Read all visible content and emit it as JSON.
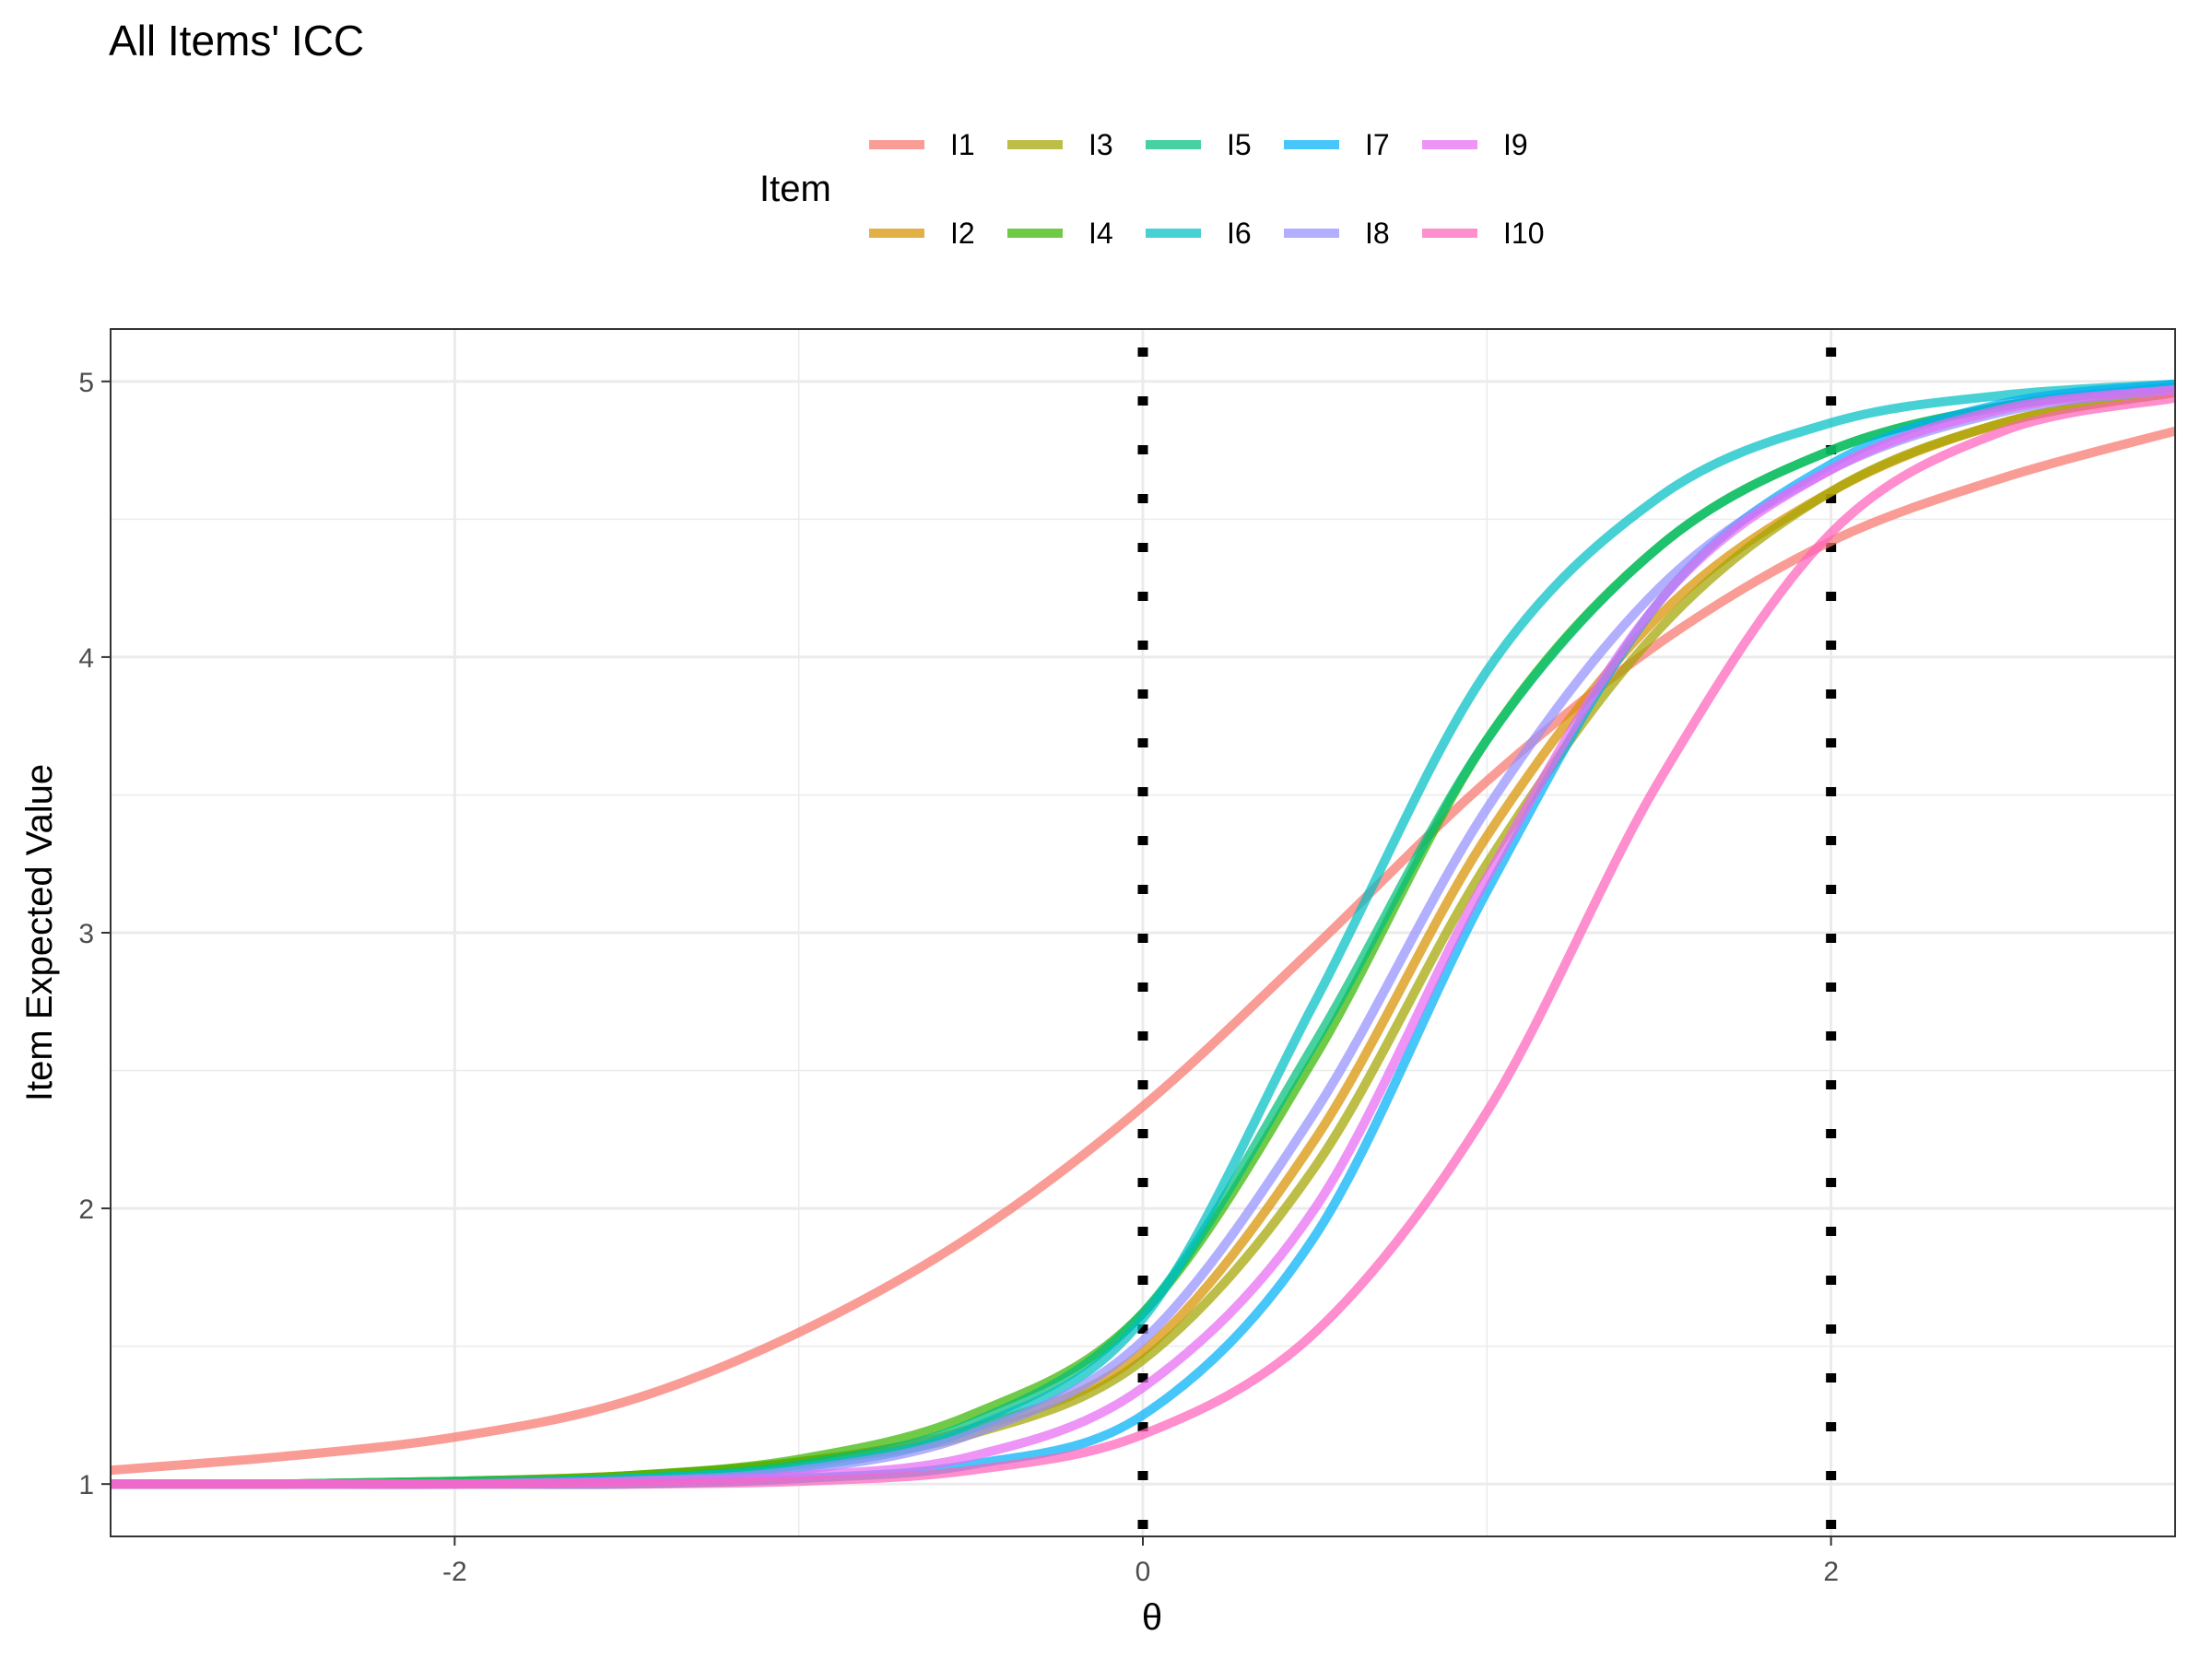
{
  "chart_data": {
    "type": "line",
    "title": "All Items' ICC",
    "xlabel": "θ",
    "ylabel": "Item Expected Value",
    "xlim": [
      -3.0,
      3.0
    ],
    "ylim": [
      0.81,
      5.19
    ],
    "x_ticks": [
      -2,
      0,
      2
    ],
    "y_ticks": [
      1,
      2,
      3,
      4,
      5
    ],
    "grid": true,
    "reference_lines": [
      {
        "x": 0,
        "style": "dotted",
        "color": "#000000"
      },
      {
        "x": 2,
        "style": "dotted",
        "color": "#000000"
      }
    ],
    "legend": {
      "title": "Item",
      "position": "top",
      "entries": [
        "I1",
        "I2",
        "I3",
        "I4",
        "I5",
        "I6",
        "I7",
        "I8",
        "I9",
        "I10"
      ]
    },
    "x": [
      -3.0,
      -2.5,
      -2.0,
      -1.5,
      -1.0,
      -0.5,
      0.0,
      0.5,
      1.0,
      1.5,
      2.0,
      2.5,
      3.0
    ],
    "series": [
      {
        "name": "I1",
        "color": "#F8766D",
        "values": [
          1.05,
          1.1,
          1.17,
          1.3,
          1.55,
          1.9,
          2.37,
          2.95,
          3.55,
          4.05,
          4.42,
          4.65,
          4.82
        ]
      },
      {
        "name": "I2",
        "color": "#D89000",
        "values": [
          1.0,
          1.0,
          1.01,
          1.03,
          1.08,
          1.2,
          1.48,
          2.25,
          3.35,
          4.15,
          4.6,
          4.85,
          4.96
        ]
      },
      {
        "name": "I3",
        "color": "#A3A500",
        "values": [
          1.0,
          1.0,
          1.01,
          1.03,
          1.08,
          1.18,
          1.45,
          2.15,
          3.25,
          4.1,
          4.6,
          4.85,
          4.96
        ]
      },
      {
        "name": "I4",
        "color": "#39B600",
        "values": [
          1.0,
          1.0,
          1.01,
          1.03,
          1.09,
          1.25,
          1.62,
          2.55,
          3.7,
          4.4,
          4.75,
          4.91,
          4.98
        ]
      },
      {
        "name": "I5",
        "color": "#00BF7D",
        "values": [
          1.0,
          1.0,
          1.01,
          1.02,
          1.07,
          1.22,
          1.62,
          2.6,
          3.7,
          4.4,
          4.75,
          4.91,
          4.98
        ]
      },
      {
        "name": "I6",
        "color": "#00BFC4",
        "values": [
          1.0,
          1.0,
          1.0,
          1.02,
          1.06,
          1.2,
          1.6,
          2.75,
          3.95,
          4.58,
          4.85,
          4.95,
          4.99
        ]
      },
      {
        "name": "I7",
        "color": "#00B0F6",
        "values": [
          1.0,
          1.0,
          1.0,
          1.0,
          1.02,
          1.07,
          1.25,
          1.9,
          3.15,
          4.2,
          4.7,
          4.92,
          4.99
        ]
      },
      {
        "name": "I8",
        "color": "#9590FF",
        "values": [
          1.0,
          1.0,
          1.0,
          1.01,
          1.05,
          1.18,
          1.52,
          2.35,
          3.45,
          4.25,
          4.68,
          4.89,
          4.97
        ]
      },
      {
        "name": "I9",
        "color": "#E76BF3",
        "values": [
          1.0,
          1.0,
          1.0,
          1.01,
          1.03,
          1.1,
          1.35,
          2.0,
          3.2,
          4.2,
          4.68,
          4.9,
          4.97
        ]
      },
      {
        "name": "I10",
        "color": "#FF62BC",
        "values": [
          1.0,
          1.0,
          1.0,
          1.0,
          1.01,
          1.05,
          1.18,
          1.55,
          2.35,
          3.55,
          4.45,
          4.82,
          4.94
        ]
      }
    ]
  }
}
